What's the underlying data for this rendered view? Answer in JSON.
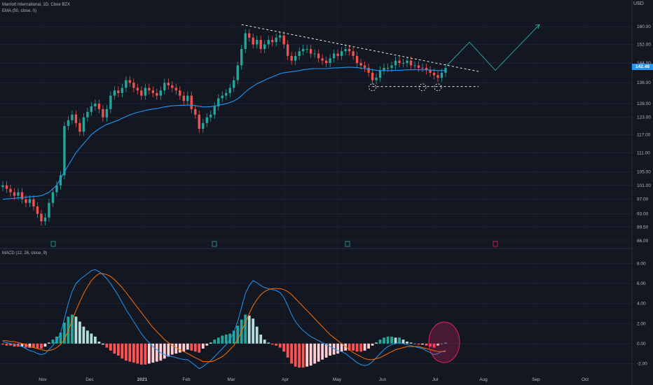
{
  "header": {
    "title": "Marriott International, 1D, Cboe BZX",
    "ema_label": "EMA (50, close, 0)",
    "macd_label": "MACD (12, 26, close, 9)",
    "currency": "USD",
    "price_label": "142.48",
    "price_tag_color": "#2196f3"
  },
  "colors": {
    "background": "#131722",
    "up": "#26a69a",
    "down": "#ef5350",
    "ema": "#2196f3",
    "signal": "#ff6d00",
    "projection": "#26a69a",
    "trendline": "#ffffff"
  },
  "chart_data": [
    {
      "type": "candlestick",
      "title": "Marriott International, 1D, Cboe BZX",
      "ylim": [
        86.0,
        166.0
      ],
      "yscale": "log",
      "y_ticks": [
        "160.00",
        "152.00",
        "144.00",
        "136.00",
        "128.00",
        "123.00",
        "117.00",
        "111.00",
        "105.00",
        "101.00",
        "97.00",
        "93.00",
        "89.50",
        "86.00"
      ],
      "x_ticks": [
        "Nov",
        "Dec",
        "2021",
        "Feb",
        "Mar",
        "Apr",
        "May",
        "Jun",
        "Jul",
        "Aug",
        "Sep",
        "Oct"
      ],
      "overlay": {
        "name": "EMA (50, close, 0)",
        "color": "#2196f3"
      },
      "last_price": 142.48,
      "close_series": [
        101,
        100,
        99,
        98,
        99,
        97,
        96,
        97,
        95,
        93,
        91,
        92,
        96,
        99,
        101,
        104,
        120,
        122,
        124,
        121,
        118,
        123,
        125,
        127,
        128,
        126,
        123,
        126,
        131,
        133,
        132,
        134,
        137,
        136,
        134,
        133,
        131,
        134,
        133,
        132,
        131,
        133,
        136,
        135,
        134,
        133,
        131,
        129,
        131,
        126,
        124,
        119,
        121,
        123,
        124,
        127,
        130,
        131,
        132,
        134,
        137,
        143,
        150,
        157,
        155,
        152,
        154,
        150,
        152,
        154,
        153,
        155,
        156,
        152,
        147,
        145,
        147,
        149,
        150,
        150,
        148,
        148,
        146,
        145,
        144,
        146,
        148,
        147,
        149,
        150,
        149,
        147,
        144,
        143,
        142,
        140,
        137,
        138,
        141,
        142,
        142,
        143,
        145,
        144,
        144,
        145,
        143,
        143,
        142,
        142,
        141,
        140,
        139,
        138,
        140,
        142
      ],
      "ema_series": [
        97,
        97.1,
        97.2,
        97.3,
        97.4,
        97.5,
        97.6,
        97.7,
        97.8,
        97.9,
        98,
        98.5,
        99,
        100,
        101,
        103,
        105,
        107,
        109,
        111,
        112.5,
        114,
        115.5,
        117,
        118,
        119,
        119.8,
        120.5,
        121,
        121.5,
        122,
        122.7,
        123.3,
        123.9,
        124.4,
        124.8,
        125.1,
        125.5,
        125.8,
        126,
        126.2,
        126.5,
        126.8,
        127,
        127.2,
        127.3,
        127.4,
        127.4,
        127.5,
        127.4,
        127.3,
        127,
        126.8,
        126.8,
        126.9,
        127.1,
        127.4,
        127.7,
        128,
        128.4,
        129,
        129.8,
        131,
        132.4,
        133.6,
        134.6,
        135.6,
        136.3,
        137,
        137.7,
        138.3,
        139,
        139.6,
        140,
        140.2,
        140.4,
        140.6,
        140.9,
        141.2,
        141.4,
        141.6,
        141.7,
        141.7,
        141.7,
        141.7,
        141.8,
        142,
        142,
        142.1,
        142.2,
        142.3,
        142.2,
        142.1,
        141.9,
        141.7,
        141.5,
        141.2,
        141,
        140.9,
        140.9,
        140.9,
        140.9,
        141,
        141,
        141.1,
        141.2,
        141.2,
        141.2,
        141.2,
        141.2,
        141.2,
        141.1,
        141,
        140.9,
        140.9,
        141
      ],
      "annotations": [
        "descending trendline",
        "support line",
        "projected breakout path"
      ]
    },
    {
      "type": "bar",
      "title": "MACD (12, 26, close, 9)",
      "ylim": [
        -2.6,
        8.6
      ],
      "y_ticks": [
        "8.00",
        "6.00",
        "4.00",
        "2.00",
        "0.00",
        "-2.00"
      ],
      "series": [
        {
          "name": "MACD",
          "color": "#2196f3",
          "values": [
            0.2,
            0.1,
            0.0,
            -0.1,
            -0.2,
            -0.3,
            -0.5,
            -0.7,
            -0.8,
            -1.0,
            -1.1,
            -1.0,
            -0.6,
            -0.2,
            0.3,
            1.0,
            2.5,
            4.0,
            5.2,
            6.0,
            6.4,
            6.7,
            7.0,
            7.3,
            7.4,
            7.2,
            6.9,
            6.5,
            6.0,
            5.4,
            4.8,
            4.1,
            3.4,
            2.8,
            2.2,
            1.6,
            1.0,
            0.5,
            0.1,
            -0.3,
            -0.6,
            -0.9,
            -1.1,
            -1.2,
            -1.3,
            -1.4,
            -1.5,
            -1.6,
            -1.6,
            -1.9,
            -2.2,
            -2.5,
            -2.3,
            -2.0,
            -1.7,
            -1.3,
            -0.9,
            -0.5,
            -0.1,
            0.4,
            1.1,
            2.2,
            3.6,
            5.0,
            5.8,
            6.3,
            6.1,
            5.8,
            5.6,
            5.5,
            5.4,
            5.3,
            5.1,
            4.6,
            3.8,
            2.9,
            2.2,
            1.7,
            1.3,
            1.0,
            0.7,
            0.5,
            0.3,
            0.1,
            -0.1,
            -0.3,
            -0.5,
            -0.7,
            -0.8,
            -1.0,
            -1.3,
            -1.6,
            -1.9,
            -2.1,
            -2.2,
            -2.1,
            -1.8,
            -1.4,
            -1.0,
            -0.6,
            -0.3,
            -0.1,
            0.0,
            0.1,
            0.0,
            -0.1,
            -0.2,
            -0.3,
            -0.4,
            -0.5,
            -0.7,
            -0.9,
            -1.1,
            -1.0,
            -0.8,
            -0.7
          ]
        },
        {
          "name": "Signal",
          "color": "#ff6d00",
          "values": [
            0.3,
            0.3,
            0.2,
            0.2,
            0.1,
            0.0,
            -0.1,
            -0.3,
            -0.4,
            -0.5,
            -0.6,
            -0.7,
            -0.7,
            -0.6,
            -0.4,
            -0.1,
            0.4,
            1.3,
            2.3,
            3.3,
            4.2,
            5.0,
            5.7,
            6.3,
            6.7,
            7.0,
            7.0,
            6.9,
            6.7,
            6.4,
            6.0,
            5.6,
            5.1,
            4.6,
            4.1,
            3.6,
            3.1,
            2.6,
            2.1,
            1.6,
            1.2,
            0.8,
            0.4,
            0.1,
            -0.2,
            -0.4,
            -0.6,
            -0.8,
            -1.0,
            -1.2,
            -1.4,
            -1.6,
            -1.8,
            -1.8,
            -1.8,
            -1.7,
            -1.5,
            -1.3,
            -1.0,
            -0.6,
            -0.2,
            0.4,
            1.2,
            2.1,
            3.0,
            3.8,
            4.4,
            4.9,
            5.2,
            5.4,
            5.5,
            5.5,
            5.5,
            5.4,
            5.2,
            4.9,
            4.5,
            4.1,
            3.7,
            3.3,
            2.9,
            2.5,
            2.1,
            1.7,
            1.3,
            0.9,
            0.6,
            0.3,
            0.0,
            -0.3,
            -0.6,
            -0.9,
            -1.1,
            -1.3,
            -1.5,
            -1.6,
            -1.6,
            -1.5,
            -1.4,
            -1.2,
            -1.0,
            -0.8,
            -0.6,
            -0.5,
            -0.4,
            -0.3,
            -0.3,
            -0.3,
            -0.3,
            -0.4,
            -0.5,
            -0.6,
            -0.7,
            -0.8,
            -0.8,
            -0.8
          ]
        }
      ]
    }
  ]
}
